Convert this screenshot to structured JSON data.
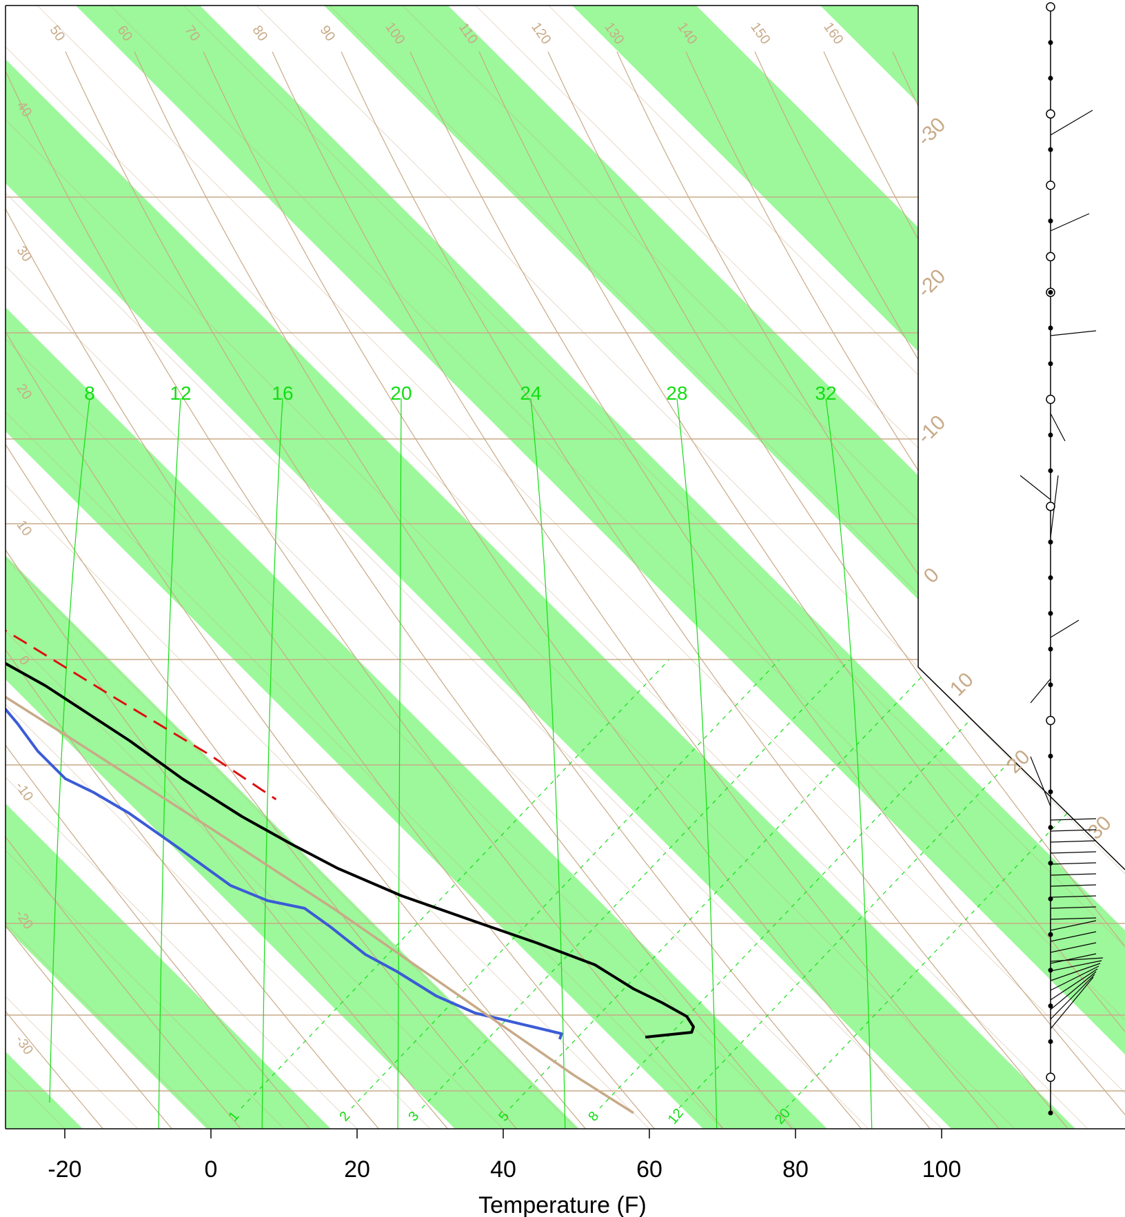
{
  "chart_data": {
    "type": "line",
    "title": "",
    "xlabel": "Temperature (F)",
    "ylabel": "",
    "xlim": [
      -28,
      130
    ],
    "x_ticks": [
      -20,
      0,
      20,
      40,
      60,
      80,
      100
    ],
    "isotherm_labels": [
      "-30",
      "-20",
      "-10",
      "0",
      "10",
      "20",
      "30"
    ],
    "dry_adiabat_labels": [
      "50",
      "60",
      "70",
      "80",
      "90",
      "100",
      "110",
      "120",
      "130",
      "140",
      "150",
      "160"
    ],
    "left_adiabat_labels": [
      "40",
      "30",
      "20",
      "10",
      "0",
      "-10",
      "-20",
      "-30"
    ],
    "mixing_ratio_top_labels": [
      "8",
      "12",
      "16",
      "20",
      "24",
      "28",
      "32"
    ],
    "mixing_ratio_bottom_labels": [
      "1",
      "2",
      "3",
      "5",
      "8",
      "12",
      "20"
    ],
    "series": [
      {
        "role": "temperature",
        "color": "#000000",
        "points": [
          [
            72,
            1505
          ],
          [
            79,
            1498
          ],
          [
            80,
            1490
          ],
          [
            80.5,
            1475
          ],
          [
            79,
            1455
          ],
          [
            77,
            1435
          ],
          [
            75,
            1400
          ],
          [
            70,
            1368
          ],
          [
            65,
            1340
          ],
          [
            58,
            1300
          ],
          [
            53,
            1260
          ],
          [
            50,
            1225
          ],
          [
            47,
            1185
          ],
          [
            44,
            1130
          ],
          [
            42,
            1075
          ],
          [
            40,
            1035
          ],
          [
            38,
            995
          ],
          [
            35,
            955
          ],
          [
            31,
            900
          ],
          [
            27,
            855
          ],
          [
            24,
            800
          ],
          [
            22,
            725
          ],
          [
            21,
            690
          ],
          [
            23,
            640
          ],
          [
            26,
            575
          ],
          [
            30,
            520
          ],
          [
            34,
            470
          ],
          [
            37,
            420
          ],
          [
            41,
            370
          ],
          [
            45,
            300
          ],
          [
            49,
            235
          ]
        ]
      },
      {
        "role": "dewpoint",
        "color": "#3b5bd6",
        "points": [
          [
            60,
            1508
          ],
          [
            61,
            1500
          ],
          [
            58,
            1490
          ],
          [
            52,
            1470
          ],
          [
            49,
            1445
          ],
          [
            47,
            1410
          ],
          [
            45,
            1385
          ],
          [
            44,
            1345
          ],
          [
            43,
            1318
          ],
          [
            39,
            1307
          ],
          [
            36,
            1285
          ],
          [
            34,
            1230
          ],
          [
            32,
            1180
          ],
          [
            30,
            1150
          ],
          [
            28,
            1130
          ],
          [
            28,
            1090
          ],
          [
            29,
            1050
          ],
          [
            30,
            985
          ],
          [
            23,
            945
          ],
          [
            17,
            915
          ],
          [
            18,
            845
          ],
          [
            16,
            755
          ],
          [
            12,
            660
          ],
          [
            9,
            610
          ],
          [
            7,
            510
          ],
          [
            7,
            430
          ],
          [
            7,
            355
          ],
          [
            11,
            305
          ],
          [
            16,
            235
          ]
        ]
      },
      {
        "role": "parcel",
        "color": "#c8aa88",
        "points": [
          [
            60,
            1615
          ],
          [
            57,
            1560
          ],
          [
            52,
            1440
          ],
          [
            47,
            1320
          ],
          [
            41,
            1200
          ],
          [
            35,
            1085
          ],
          [
            29,
            975
          ],
          [
            23,
            850
          ],
          [
            18,
            740
          ],
          [
            14,
            630
          ],
          [
            12,
            560
          ]
        ]
      },
      {
        "role": "parcel-segment",
        "color": "#dd1111",
        "points": [
          [
            35,
            835
          ],
          [
            41,
            930
          ],
          [
            46,
            1015
          ],
          [
            51,
            1095
          ],
          [
            54,
            1160
          ]
        ]
      }
    ],
    "wind_profile": {
      "station_markers": [
        "open",
        "filled",
        "filled",
        "open",
        "filled",
        "open",
        "filled",
        "open",
        "dot",
        "filled",
        "filled",
        "open",
        "filled",
        "filled",
        "open",
        "filled",
        "filled",
        "filled",
        "filled",
        "filled",
        "open",
        "filled",
        "filled",
        "filled",
        "filled",
        "filled",
        "filled",
        "filled",
        "filled",
        "filled",
        "open",
        "filled"
      ]
    }
  }
}
